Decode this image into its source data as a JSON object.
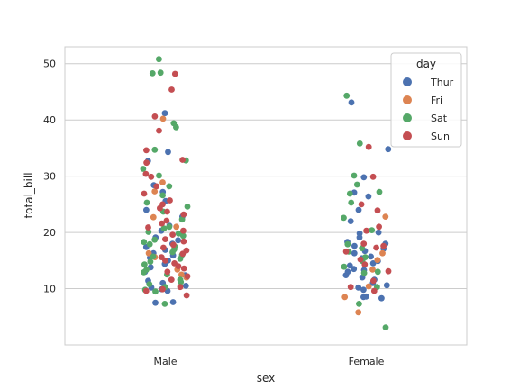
{
  "chart_data": {
    "type": "scatter",
    "subtype": "strip",
    "title": "",
    "xlabel": "sex",
    "ylabel": "total_bill",
    "categories": [
      "Male",
      "Female"
    ],
    "ylim": [
      0,
      53
    ],
    "yticks": [
      10,
      20,
      30,
      40,
      50
    ],
    "grid": "horizontal",
    "legend": {
      "title": "day",
      "placement": "top-right"
    },
    "hue_order": [
      "Thur",
      "Fri",
      "Sat",
      "Sun"
    ],
    "colors": {
      "Thur": "#4c72b0",
      "Fri": "#dd8452",
      "Sat": "#55a868",
      "Sun": "#c44e52"
    },
    "series": [
      {
        "name": "Thur",
        "points": [
          [
            "Male",
            41.2
          ],
          [
            "Male",
            34.3
          ],
          [
            "Male",
            32.7
          ],
          [
            "Male",
            28.4
          ],
          [
            "Male",
            27.2
          ],
          [
            "Male",
            25.6
          ],
          [
            "Male",
            24.0
          ],
          [
            "Male",
            22.8
          ],
          [
            "Male",
            21.2
          ],
          [
            "Male",
            20.3
          ],
          [
            "Male",
            19.1
          ],
          [
            "Male",
            18.6
          ],
          [
            "Male",
            18.0
          ],
          [
            "Male",
            17.4
          ],
          [
            "Male",
            16.9
          ],
          [
            "Male",
            16.3
          ],
          [
            "Male",
            15.9
          ],
          [
            "Male",
            15.5
          ],
          [
            "Male",
            15.0
          ],
          [
            "Male",
            14.4
          ],
          [
            "Male",
            13.8
          ],
          [
            "Male",
            13.0
          ],
          [
            "Male",
            12.4
          ],
          [
            "Male",
            12.0
          ],
          [
            "Male",
            11.4
          ],
          [
            "Male",
            11.0
          ],
          [
            "Male",
            10.5
          ],
          [
            "Male",
            10.2
          ],
          [
            "Male",
            9.9
          ],
          [
            "Male",
            9.6
          ],
          [
            "Male",
            7.6
          ],
          [
            "Male",
            7.5
          ],
          [
            "Female",
            43.1
          ],
          [
            "Female",
            34.8
          ],
          [
            "Female",
            29.8
          ],
          [
            "Female",
            27.1
          ],
          [
            "Female",
            26.4
          ],
          [
            "Female",
            24.0
          ],
          [
            "Female",
            22.0
          ],
          [
            "Female",
            20.0
          ],
          [
            "Female",
            19.8
          ],
          [
            "Female",
            19.1
          ],
          [
            "Female",
            18.3
          ],
          [
            "Female",
            18.0
          ],
          [
            "Female",
            17.6
          ],
          [
            "Female",
            17.1
          ],
          [
            "Female",
            16.7
          ],
          [
            "Female",
            16.3
          ],
          [
            "Female",
            15.7
          ],
          [
            "Female",
            15.4
          ],
          [
            "Female",
            14.9
          ],
          [
            "Female",
            14.5
          ],
          [
            "Female",
            14.1
          ],
          [
            "Female",
            13.5
          ],
          [
            "Female",
            13.3
          ],
          [
            "Female",
            13.0
          ],
          [
            "Female",
            12.4
          ],
          [
            "Female",
            12.0
          ],
          [
            "Female",
            11.6
          ],
          [
            "Female",
            11.0
          ],
          [
            "Female",
            10.6
          ],
          [
            "Female",
            10.2
          ],
          [
            "Female",
            9.8
          ],
          [
            "Female",
            8.6
          ],
          [
            "Female",
            8.5
          ],
          [
            "Female",
            8.3
          ]
        ]
      },
      {
        "name": "Fri",
        "points": [
          [
            "Male",
            40.2
          ],
          [
            "Male",
            28.9
          ],
          [
            "Male",
            27.3
          ],
          [
            "Male",
            22.7
          ],
          [
            "Male",
            21.0
          ],
          [
            "Male",
            16.3
          ],
          [
            "Male",
            15.6
          ],
          [
            "Male",
            13.4
          ],
          [
            "Male",
            12.5
          ],
          [
            "Male",
            12.0
          ],
          [
            "Female",
            22.8
          ],
          [
            "Female",
            16.3
          ],
          [
            "Female",
            15.1
          ],
          [
            "Female",
            13.4
          ],
          [
            "Female",
            10.4
          ],
          [
            "Female",
            8.5
          ],
          [
            "Female",
            5.8
          ]
        ]
      },
      {
        "name": "Sat",
        "points": [
          [
            "Male",
            50.8
          ],
          [
            "Male",
            48.3
          ],
          [
            "Male",
            48.4
          ],
          [
            "Male",
            39.4
          ],
          [
            "Male",
            38.7
          ],
          [
            "Male",
            34.7
          ],
          [
            "Male",
            32.8
          ],
          [
            "Male",
            31.3
          ],
          [
            "Male",
            30.1
          ],
          [
            "Male",
            28.2
          ],
          [
            "Male",
            26.6
          ],
          [
            "Male",
            25.3
          ],
          [
            "Male",
            24.6
          ],
          [
            "Male",
            23.7
          ],
          [
            "Male",
            22.3
          ],
          [
            "Male",
            21.0
          ],
          [
            "Male",
            20.7
          ],
          [
            "Male",
            20.1
          ],
          [
            "Male",
            19.8
          ],
          [
            "Male",
            19.4
          ],
          [
            "Male",
            18.7
          ],
          [
            "Male",
            18.3
          ],
          [
            "Male",
            17.9
          ],
          [
            "Male",
            17.5
          ],
          [
            "Male",
            17.0
          ],
          [
            "Male",
            16.5
          ],
          [
            "Male",
            16.0
          ],
          [
            "Male",
            15.7
          ],
          [
            "Male",
            15.3
          ],
          [
            "Male",
            14.8
          ],
          [
            "Male",
            14.3
          ],
          [
            "Male",
            13.4
          ],
          [
            "Male",
            12.9
          ],
          [
            "Male",
            12.5
          ],
          [
            "Male",
            11.6
          ],
          [
            "Male",
            11.2
          ],
          [
            "Male",
            10.8
          ],
          [
            "Male",
            10.3
          ],
          [
            "Male",
            9.8
          ],
          [
            "Male",
            9.5
          ],
          [
            "Male",
            7.3
          ],
          [
            "Female",
            44.3
          ],
          [
            "Female",
            35.8
          ],
          [
            "Female",
            30.1
          ],
          [
            "Female",
            28.5
          ],
          [
            "Female",
            27.2
          ],
          [
            "Female",
            26.9
          ],
          [
            "Female",
            25.3
          ],
          [
            "Female",
            22.6
          ],
          [
            "Female",
            20.4
          ],
          [
            "Female",
            17.9
          ],
          [
            "Female",
            17.2
          ],
          [
            "Female",
            16.6
          ],
          [
            "Female",
            15.6
          ],
          [
            "Female",
            14.9
          ],
          [
            "Female",
            13.9
          ],
          [
            "Female",
            13.0
          ],
          [
            "Female",
            12.8
          ],
          [
            "Female",
            10.3
          ],
          [
            "Female",
            7.3
          ],
          [
            "Female",
            3.1
          ]
        ]
      },
      {
        "name": "Sun",
        "points": [
          [
            "Male",
            48.2
          ],
          [
            "Male",
            45.4
          ],
          [
            "Male",
            40.6
          ],
          [
            "Male",
            38.1
          ],
          [
            "Male",
            34.6
          ],
          [
            "Male",
            32.9
          ],
          [
            "Male",
            32.4
          ],
          [
            "Male",
            30.4
          ],
          [
            "Male",
            29.9
          ],
          [
            "Male",
            28.2
          ],
          [
            "Male",
            26.9
          ],
          [
            "Male",
            25.7
          ],
          [
            "Male",
            25.0
          ],
          [
            "Male",
            24.3
          ],
          [
            "Male",
            23.7
          ],
          [
            "Male",
            23.2
          ],
          [
            "Male",
            22.1
          ],
          [
            "Male",
            21.6
          ],
          [
            "Male",
            20.9
          ],
          [
            "Male",
            20.3
          ],
          [
            "Male",
            19.6
          ],
          [
            "Male",
            18.8
          ],
          [
            "Male",
            18.4
          ],
          [
            "Male",
            17.8
          ],
          [
            "Male",
            17.3
          ],
          [
            "Male",
            16.8
          ],
          [
            "Male",
            16.2
          ],
          [
            "Male",
            15.6
          ],
          [
            "Male",
            15.0
          ],
          [
            "Male",
            14.5
          ],
          [
            "Male",
            14.0
          ],
          [
            "Male",
            13.6
          ],
          [
            "Male",
            13.0
          ],
          [
            "Male",
            12.2
          ],
          [
            "Male",
            11.6
          ],
          [
            "Male",
            10.3
          ],
          [
            "Male",
            9.9
          ],
          [
            "Male",
            9.6
          ],
          [
            "Male",
            8.8
          ],
          [
            "Female",
            35.2
          ],
          [
            "Female",
            29.9
          ],
          [
            "Female",
            25.0
          ],
          [
            "Female",
            23.9
          ],
          [
            "Female",
            21.0
          ],
          [
            "Female",
            20.3
          ],
          [
            "Female",
            18.0
          ],
          [
            "Female",
            17.6
          ],
          [
            "Female",
            17.3
          ],
          [
            "Female",
            16.6
          ],
          [
            "Female",
            15.2
          ],
          [
            "Female",
            14.3
          ],
          [
            "Female",
            13.1
          ],
          [
            "Female",
            11.4
          ],
          [
            "Female",
            10.3
          ],
          [
            "Female",
            9.6
          ]
        ]
      }
    ]
  }
}
